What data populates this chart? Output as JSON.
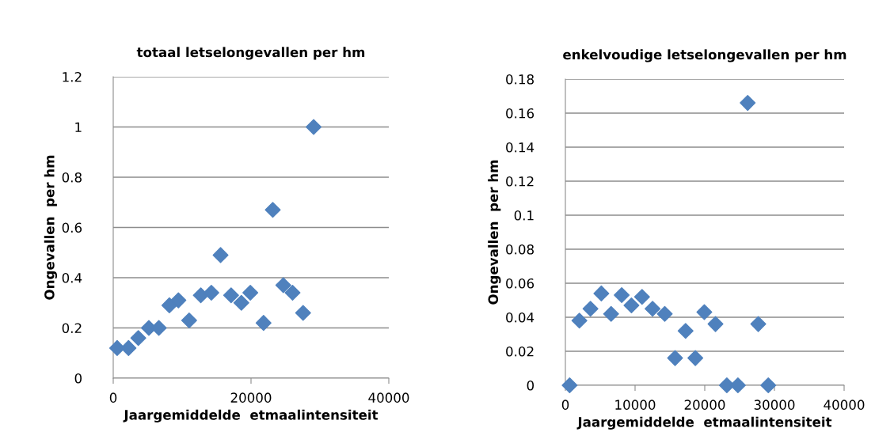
{
  "chart_data": [
    {
      "type": "scatter",
      "title": "totaal letselongevallen per hm",
      "xlabel": "Jaargemiddelde  etmaalintensiteit",
      "ylabel": "Ongevallen  per hm",
      "marker": "diamond",
      "grid": "y",
      "xlim": [
        0,
        40000
      ],
      "xticks": [
        0,
        20000,
        40000
      ],
      "ylim": [
        0,
        1.2
      ],
      "yticks": [
        0,
        0.2,
        0.4,
        0.6,
        0.8,
        1,
        1.2
      ],
      "series": [
        {
          "color": "#4f81bd",
          "x": [
            570,
            2220,
            3640,
            5170,
            6620,
            8150,
            9460,
            11020,
            12710,
            14240,
            15580,
            17110,
            18600,
            19900,
            21820,
            23160,
            24690,
            26030,
            27560,
            29090
          ],
          "values": [
            0.12,
            0.12,
            0.16,
            0.2,
            0.2,
            0.29,
            0.31,
            0.23,
            0.33,
            0.34,
            0.49,
            0.33,
            0.3,
            0.34,
            0.22,
            0.67,
            0.37,
            0.34,
            0.26,
            1.0
          ]
        }
      ]
    },
    {
      "type": "scatter",
      "title": "enkelvoudige letselongevallen per hm",
      "xlabel": "Jaargemiddelde  etmaalintensiteit",
      "ylabel": "Ongevallen  per hm",
      "marker": "diamond",
      "grid": "y",
      "xlim": [
        0,
        40000
      ],
      "xticks": [
        0,
        10000,
        20000,
        30000,
        40000
      ],
      "ylim": [
        0,
        0.18
      ],
      "yticks": [
        0,
        0.02,
        0.04,
        0.06,
        0.08,
        {
          "value": 0.1,
          "label": "0.1"
        },
        0.12,
        0.14,
        0.16,
        0.18
      ],
      "series": [
        {
          "color": "#4f81bd",
          "x": [
            610,
            2010,
            3600,
            5160,
            6560,
            8080,
            9480,
            11000,
            12510,
            14260,
            15740,
            17250,
            18650,
            19940,
            21540,
            23170,
            24760,
            26160,
            27680,
            29120
          ],
          "values": [
            0,
            0.038,
            0.045,
            0.054,
            0.042,
            0.053,
            0.047,
            0.052,
            0.045,
            0.042,
            0.016,
            0.032,
            0.016,
            0.043,
            0.036,
            0,
            0,
            0.166,
            0.036,
            0
          ]
        }
      ]
    }
  ]
}
